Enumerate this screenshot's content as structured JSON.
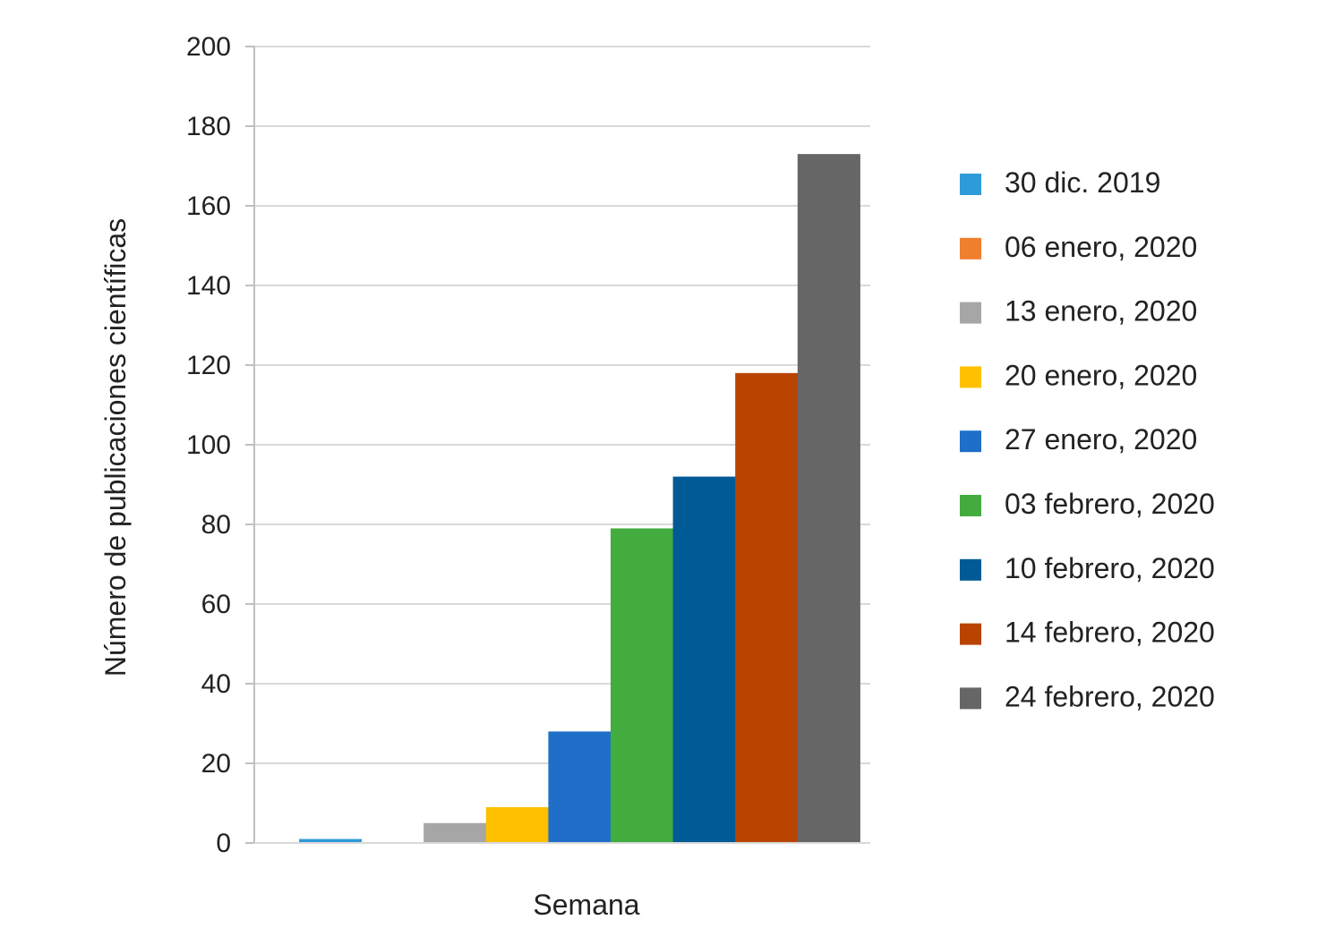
{
  "chart_data": {
    "type": "bar",
    "title": "",
    "xlabel": "Semana",
    "ylabel": "Número de publicaciones científicas",
    "ylim": [
      0,
      200
    ],
    "yticks": [
      "0",
      "20",
      "40",
      "60",
      "80",
      "100",
      "120",
      "140",
      "160",
      "180",
      "200"
    ],
    "grid": true,
    "legend_position": "right",
    "series": [
      {
        "name": "30 dic. 2019",
        "value": 1,
        "color": "#2E9BD8"
      },
      {
        "name": "06 enero, 2020",
        "value": 0,
        "color": "#F07F2E"
      },
      {
        "name": "13 enero, 2020",
        "value": 5,
        "color": "#A6A6A6"
      },
      {
        "name": "20 enero, 2020",
        "value": 9,
        "color": "#FFC000"
      },
      {
        "name": "27 enero, 2020",
        "value": 28,
        "color": "#1F6FC8"
      },
      {
        "name": "03 febrero, 2020",
        "value": 79,
        "color": "#43AC3F"
      },
      {
        "name": "10 febrero, 2020",
        "value": 92,
        "color": "#005A96"
      },
      {
        "name": "14 febrero, 2020",
        "value": 118,
        "color": "#B84400"
      },
      {
        "name": "24 febrero, 2020",
        "value": 173,
        "color": "#666666"
      }
    ]
  }
}
